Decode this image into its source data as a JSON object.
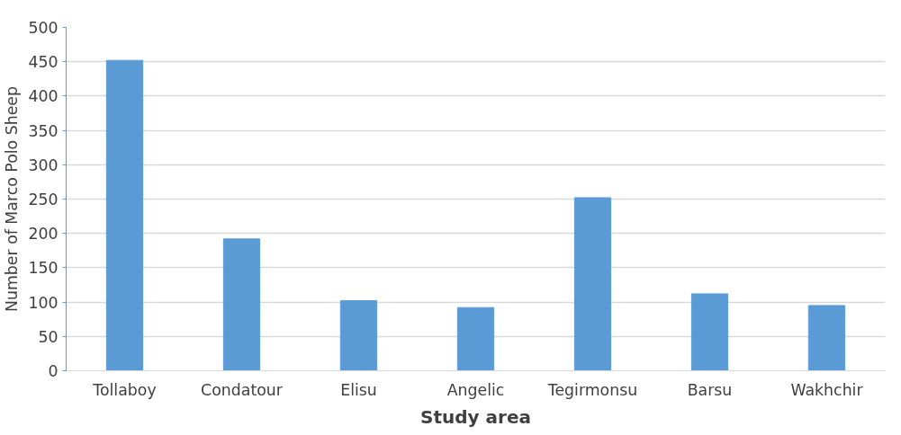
{
  "chart_data": {
    "type": "bar",
    "xlabel": "Study area",
    "ylabel": "Number of Marco Polo Sheep",
    "categories": [
      "Tollaboy",
      "Condatour",
      "Elisu",
      "Angelic",
      "Tegirmonsu",
      "Barsu",
      "Wakhchir"
    ],
    "values": [
      452,
      192,
      102,
      92,
      252,
      112,
      95
    ],
    "color": "#5b9bd5",
    "ylim": [
      0,
      500
    ],
    "yticks": [
      0,
      50,
      100,
      150,
      200,
      250,
      300,
      350,
      400,
      450,
      500
    ],
    "grid": "y"
  }
}
